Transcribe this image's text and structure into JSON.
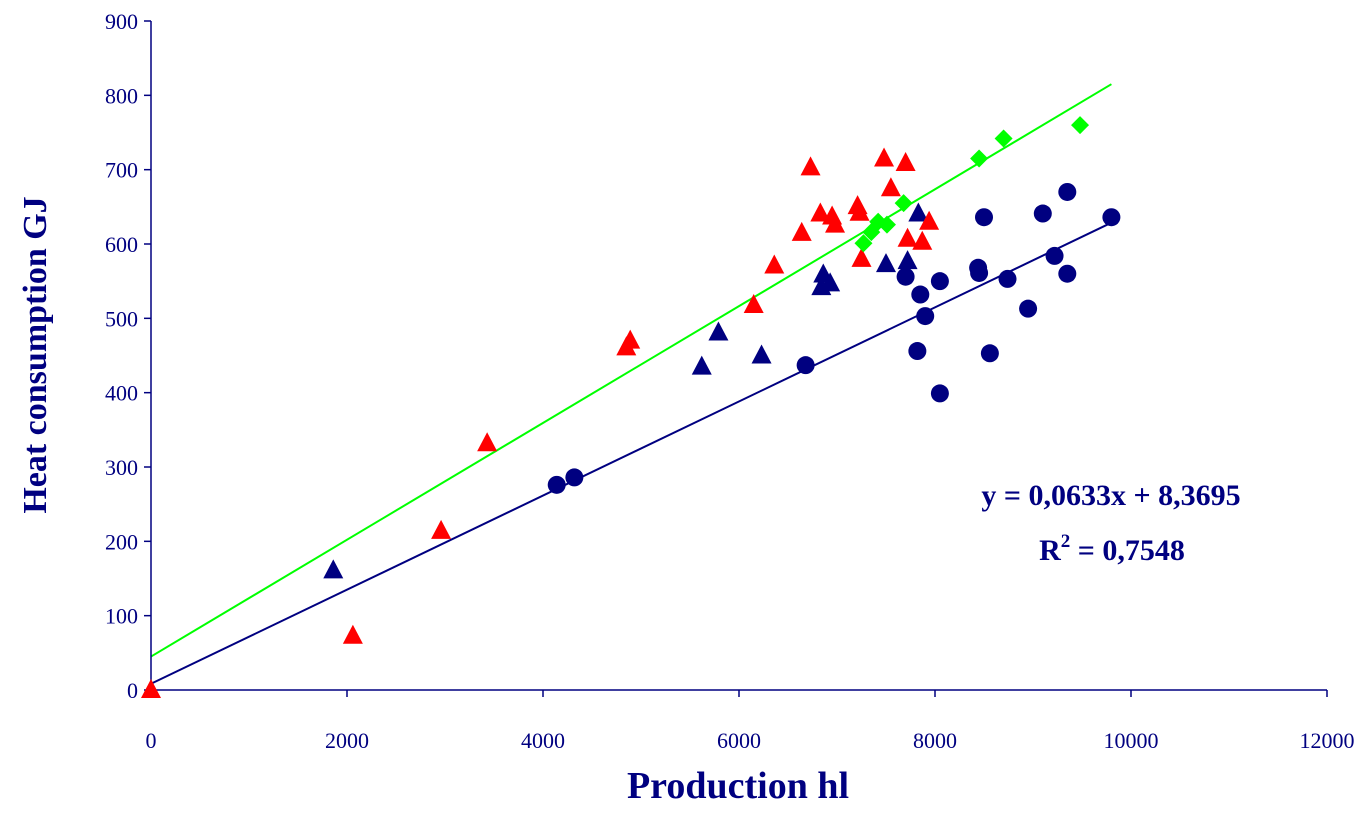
{
  "chart_data": {
    "type": "scatter",
    "xlabel": "Production hl",
    "ylabel": "Heat consumption GJ",
    "xlim": [
      0,
      12000
    ],
    "ylim": [
      0,
      900
    ],
    "x_ticks": [
      "0",
      "2000",
      "4000",
      "6000",
      "8000",
      "10000",
      "12000"
    ],
    "y_ticks": [
      "0",
      "100",
      "200",
      "300",
      "400",
      "500",
      "600",
      "700",
      "800",
      "900"
    ],
    "grid": false,
    "annotation": {
      "equation": "y = 0,0633x + 8,3695",
      "r2_prefix": "R",
      "r2_exponent": "2",
      "r2_value": " = 0,7548"
    },
    "series": [
      {
        "marker": "circle",
        "color": "#000080",
        "points": [
          [
            4140,
            276
          ],
          [
            4320,
            286
          ],
          [
            6680,
            437
          ],
          [
            7700,
            556
          ],
          [
            7820,
            456
          ],
          [
            7850,
            532
          ],
          [
            7900,
            503
          ],
          [
            8050,
            550
          ],
          [
            8050,
            399
          ],
          [
            8440,
            568
          ],
          [
            8450,
            561
          ],
          [
            8500,
            636
          ],
          [
            8560,
            453
          ],
          [
            8740,
            553
          ],
          [
            8950,
            513
          ],
          [
            9100,
            641
          ],
          [
            9220,
            584
          ],
          [
            9350,
            560
          ],
          [
            9350,
            670
          ],
          [
            9800,
            636
          ]
        ]
      },
      {
        "marker": "triangle",
        "color": "#000080",
        "points": [
          [
            1860,
            161
          ],
          [
            5620,
            435
          ],
          [
            5790,
            481
          ],
          [
            6230,
            450
          ],
          [
            6840,
            542
          ],
          [
            6860,
            559
          ],
          [
            6930,
            547
          ],
          [
            7500,
            573
          ],
          [
            7720,
            577
          ],
          [
            7830,
            641
          ]
        ]
      },
      {
        "marker": "triangle",
        "color": "#ff0000",
        "points": [
          [
            0,
            0
          ],
          [
            2060,
            73
          ],
          [
            2960,
            214
          ],
          [
            3430,
            332
          ],
          [
            4850,
            461
          ],
          [
            4890,
            470
          ],
          [
            6150,
            518
          ],
          [
            6360,
            571
          ],
          [
            6640,
            615
          ],
          [
            6730,
            703
          ],
          [
            6830,
            641
          ],
          [
            6950,
            637
          ],
          [
            6980,
            626
          ],
          [
            7210,
            651
          ],
          [
            7230,
            642
          ],
          [
            7250,
            580
          ],
          [
            7480,
            715
          ],
          [
            7550,
            675
          ],
          [
            7700,
            709
          ],
          [
            7720,
            607
          ],
          [
            7870,
            603
          ],
          [
            7940,
            630
          ]
        ]
      },
      {
        "marker": "diamond",
        "color": "#00ff00",
        "points": [
          [
            7270,
            601
          ],
          [
            7350,
            616
          ],
          [
            7420,
            630
          ],
          [
            7510,
            626
          ],
          [
            7680,
            655
          ],
          [
            8450,
            715
          ],
          [
            8700,
            742
          ],
          [
            9480,
            760
          ]
        ]
      }
    ],
    "trendlines": [
      {
        "color": "#000080",
        "from": [
          0,
          8.3695
        ],
        "to": [
          9800,
          628.7
        ]
      },
      {
        "color": "#00ff00",
        "from": [
          0,
          45
        ],
        "to": [
          9800,
          815
        ]
      }
    ],
    "colors": {
      "axis": "#000080",
      "text": "#000080"
    }
  }
}
